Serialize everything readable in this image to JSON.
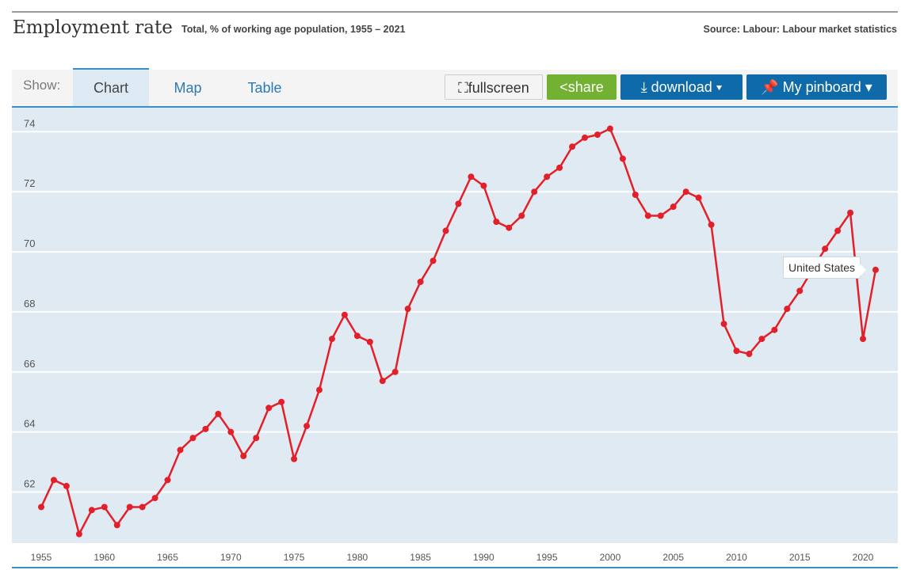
{
  "header": {
    "title": "Employment rate",
    "subtitle": "Total, % of working age population, 1955 – 2021",
    "source": "Source: Labour: Labour market statistics"
  },
  "toolbar": {
    "show_label": "Show:",
    "tabs": [
      "Chart",
      "Map",
      "Table"
    ],
    "fullscreen": "fullscreen",
    "share": "share",
    "download": "download ▾",
    "pinboard": "My pinboard ▾"
  },
  "tooltip": "United States",
  "colors": {
    "line": "#e3202a",
    "plot_bg": "#dfeaf2",
    "accent": "#0e6aa8"
  },
  "chart_data": {
    "type": "line",
    "title": "Employment rate",
    "xlabel": "",
    "ylabel": "",
    "ylim": [
      60.3,
      74.8
    ],
    "yticks": [
      62,
      64,
      66,
      68,
      70,
      72,
      74
    ],
    "xticks": [
      1955,
      1960,
      1965,
      1970,
      1975,
      1980,
      1985,
      1990,
      1995,
      2000,
      2005,
      2010,
      2015,
      2020
    ],
    "grid": true,
    "series": [
      {
        "name": "United States",
        "x": [
          1955,
          1956,
          1957,
          1958,
          1959,
          1960,
          1961,
          1962,
          1963,
          1964,
          1965,
          1966,
          1967,
          1968,
          1969,
          1970,
          1971,
          1972,
          1973,
          1974,
          1975,
          1976,
          1977,
          1978,
          1979,
          1980,
          1981,
          1982,
          1983,
          1984,
          1985,
          1986,
          1987,
          1988,
          1989,
          1990,
          1991,
          1992,
          1993,
          1994,
          1995,
          1996,
          1997,
          1998,
          1999,
          2000,
          2001,
          2002,
          2003,
          2004,
          2005,
          2006,
          2007,
          2008,
          2009,
          2010,
          2011,
          2012,
          2013,
          2014,
          2015,
          2016,
          2017,
          2018,
          2019,
          2020,
          2021
        ],
        "values": [
          61.5,
          62.4,
          62.2,
          60.6,
          61.4,
          61.5,
          60.9,
          61.5,
          61.5,
          61.8,
          62.4,
          63.4,
          63.8,
          64.1,
          64.6,
          64.0,
          63.2,
          63.8,
          64.8,
          65.0,
          63.1,
          64.2,
          65.4,
          67.1,
          67.9,
          67.2,
          67.0,
          65.7,
          66.0,
          68.1,
          69.0,
          69.7,
          70.7,
          71.6,
          72.5,
          72.2,
          71.0,
          70.8,
          71.2,
          72.0,
          72.5,
          72.8,
          73.5,
          73.8,
          73.9,
          74.1,
          73.1,
          71.9,
          71.2,
          71.2,
          71.5,
          72.0,
          71.8,
          70.9,
          67.6,
          66.7,
          66.6,
          67.1,
          67.4,
          68.1,
          68.7,
          69.4,
          70.1,
          70.7,
          71.3,
          67.1,
          69.4
        ]
      }
    ]
  }
}
